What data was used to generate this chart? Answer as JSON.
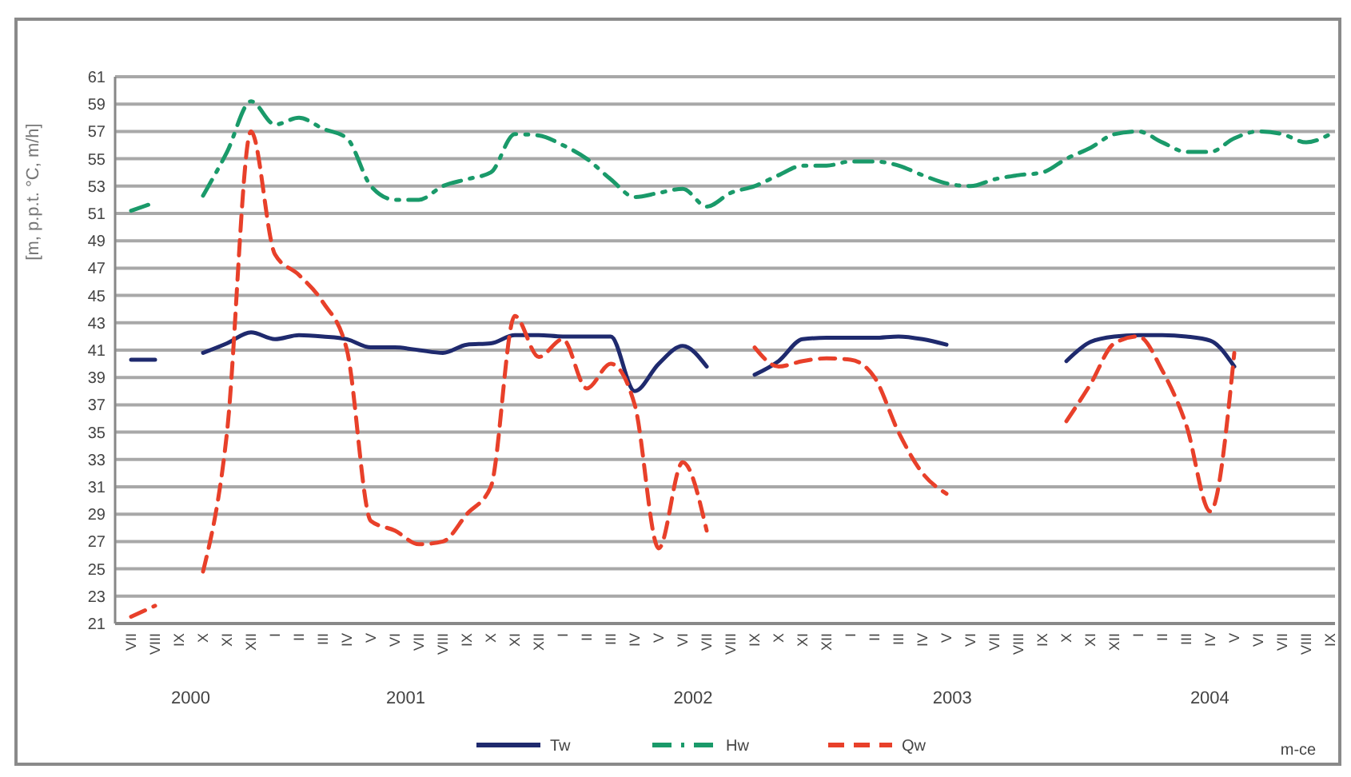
{
  "chart_data": {
    "type": "line",
    "ylabel": "[m, p.p.t. °C, m/h]",
    "annotations": [
      "m-ce"
    ],
    "categories": [
      "VII",
      "VIII",
      "IX",
      "X",
      "XI",
      "XII",
      "I",
      "II",
      "III",
      "IV",
      "V",
      "VI",
      "VII",
      "VIII",
      "IX",
      "X",
      "XI",
      "XII",
      "I",
      "II",
      "III",
      "IV",
      "V",
      "VI",
      "VII",
      "VIII",
      "IX",
      "X",
      "XI",
      "XII",
      "I",
      "II",
      "III",
      "IV",
      "V",
      "VI",
      "VII",
      "VIII",
      "IX",
      "X",
      "XI",
      "XII",
      "I",
      "II",
      "III",
      "IV",
      "V",
      "VI",
      "VII",
      "VIII",
      "IX"
    ],
    "x2lim": [
      "2000-06-11",
      "2004-09-07"
    ],
    "x2ticks": [
      {
        "value": "2000-09-15",
        "label": "2000"
      },
      {
        "value": "2001-06-15",
        "label": "2001"
      },
      {
        "value": "2002-06-15",
        "label": "2002"
      },
      {
        "value": "2003-05-10",
        "label": "2003"
      },
      {
        "value": "2004-04-01",
        "label": "2004"
      }
    ],
    "ylim": [
      21,
      61
    ],
    "yticks": [
      21,
      23,
      25,
      27,
      29,
      31,
      33,
      35,
      37,
      39,
      41,
      43,
      45,
      47,
      49,
      51,
      53,
      55,
      57,
      59,
      61
    ],
    "grid": "y",
    "legend": "bottom",
    "series": [
      {
        "name": "Tw",
        "color": "#1f2a6e",
        "line_style": "solid",
        "values": [
          40.3,
          40.3,
          null,
          40.8,
          41.5,
          42.3,
          41.8,
          42.1,
          42.0,
          41.8,
          41.2,
          41.2,
          41.0,
          40.8,
          41.4,
          41.5,
          42.1,
          42.1,
          42.0,
          42.0,
          42.0,
          38.0,
          40.0,
          41.3,
          39.8,
          null,
          39.2,
          40.2,
          41.8,
          41.9,
          41.9,
          41.9,
          42.0,
          41.8,
          41.4,
          null,
          null,
          null,
          null,
          40.2,
          41.6,
          42.0,
          42.1,
          42.1,
          42.0,
          41.7,
          39.8,
          null,
          null,
          null,
          null
        ]
      },
      {
        "name": "Hw",
        "color": "#1a9a6a",
        "line_style": "dashdot",
        "values": [
          51.2,
          51.8,
          null,
          52.3,
          55.5,
          59.2,
          57.5,
          58.0,
          57.2,
          56.5,
          53.0,
          52.0,
          52.0,
          53.0,
          53.5,
          54.0,
          56.8,
          56.7,
          56.0,
          55.0,
          53.5,
          52.2,
          52.5,
          52.8,
          51.5,
          52.5,
          53.0,
          53.8,
          54.5,
          54.5,
          54.8,
          54.8,
          54.5,
          53.8,
          53.2,
          53.0,
          53.5,
          53.8,
          54.0,
          55.0,
          55.8,
          56.8,
          57.0,
          56.2,
          55.5,
          55.5,
          56.5,
          57.0,
          56.8,
          56.2,
          56.8
        ]
      },
      {
        "name": "Qw",
        "color": "#e8402a",
        "line_style": "dashed",
        "values": [
          21.5,
          22.3,
          null,
          24.8,
          35.0,
          57.0,
          48.0,
          46.5,
          44.5,
          41.0,
          28.5,
          27.8,
          26.8,
          27.0,
          29.0,
          31.0,
          43.5,
          40.5,
          41.8,
          38.2,
          40.0,
          37.0,
          26.5,
          32.8,
          27.8,
          null,
          41.2,
          39.8,
          40.2,
          40.4,
          40.3,
          39.0,
          35.0,
          32.0,
          30.5,
          null,
          null,
          null,
          null,
          35.8,
          38.5,
          41.5,
          42.0,
          39.5,
          35.5,
          29.2,
          40.8,
          null,
          null,
          null,
          null
        ]
      }
    ]
  }
}
